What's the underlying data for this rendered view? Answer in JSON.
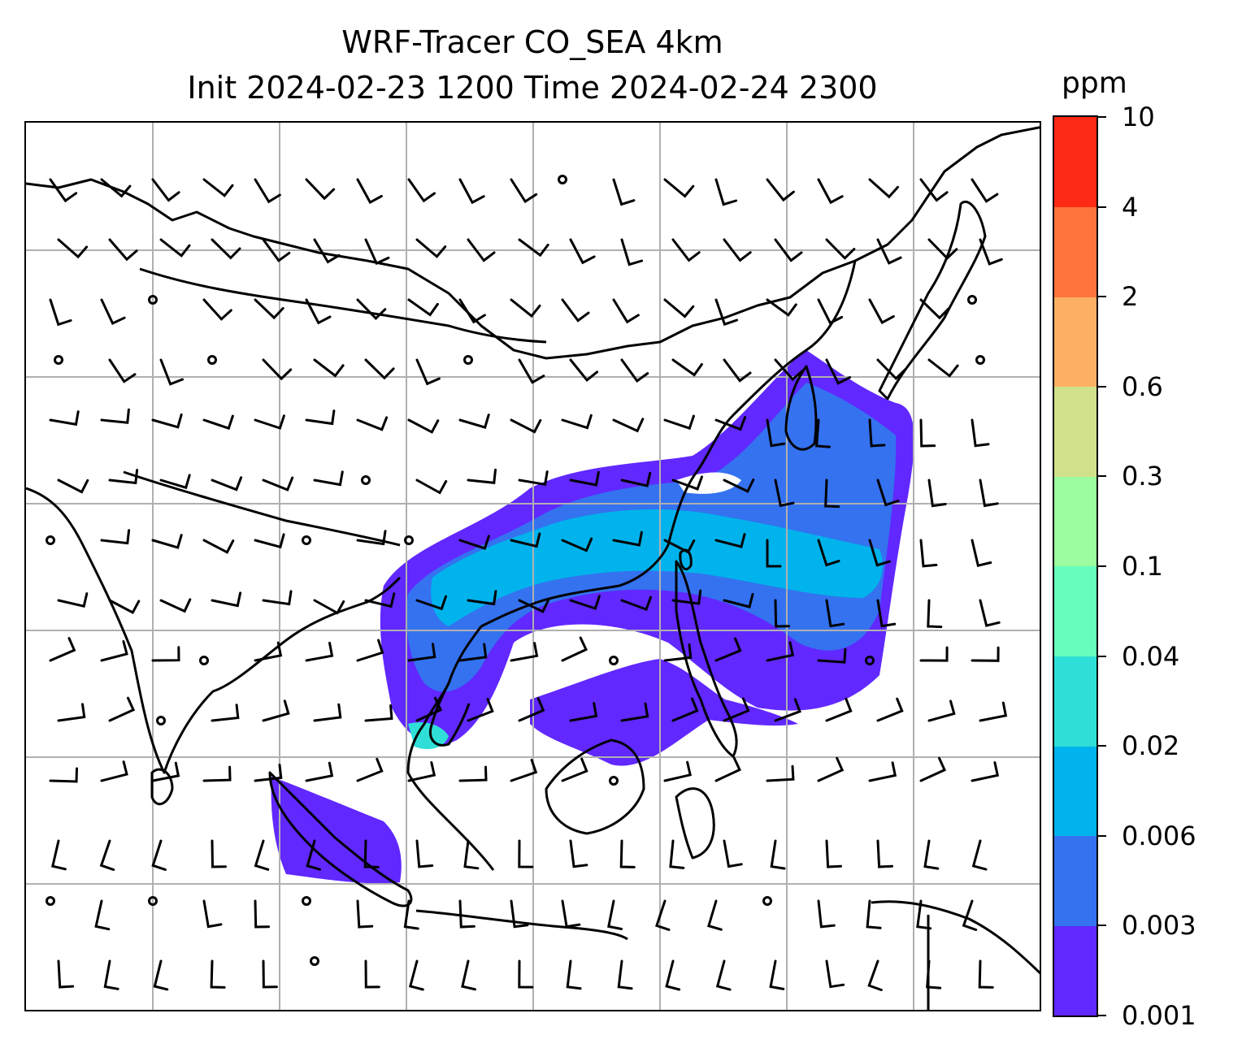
{
  "title": {
    "line1": "WRF-Tracer CO_SEA 4km",
    "line2": "Init 2024-02-23 1200 Time 2024-02-24 2300"
  },
  "colorbar": {
    "unit": "ppm",
    "levels": [
      "0.001",
      "0.003",
      "0.006",
      "0.02",
      "0.04",
      "0.1",
      "0.3",
      "0.6",
      "2",
      "4",
      "10"
    ],
    "colors": [
      "#6128ff",
      "#3472f0",
      "#00b3ec",
      "#2fdfd7",
      "#67fdbd",
      "#9bfd9f",
      "#cfe18a",
      "#fdb064",
      "#fe743c",
      "#ff2a16"
    ]
  },
  "map": {
    "gridlines": true,
    "gridline_color": "#b0b0b0",
    "coastline_color": "#000000",
    "overlay": "wind barbs"
  }
}
